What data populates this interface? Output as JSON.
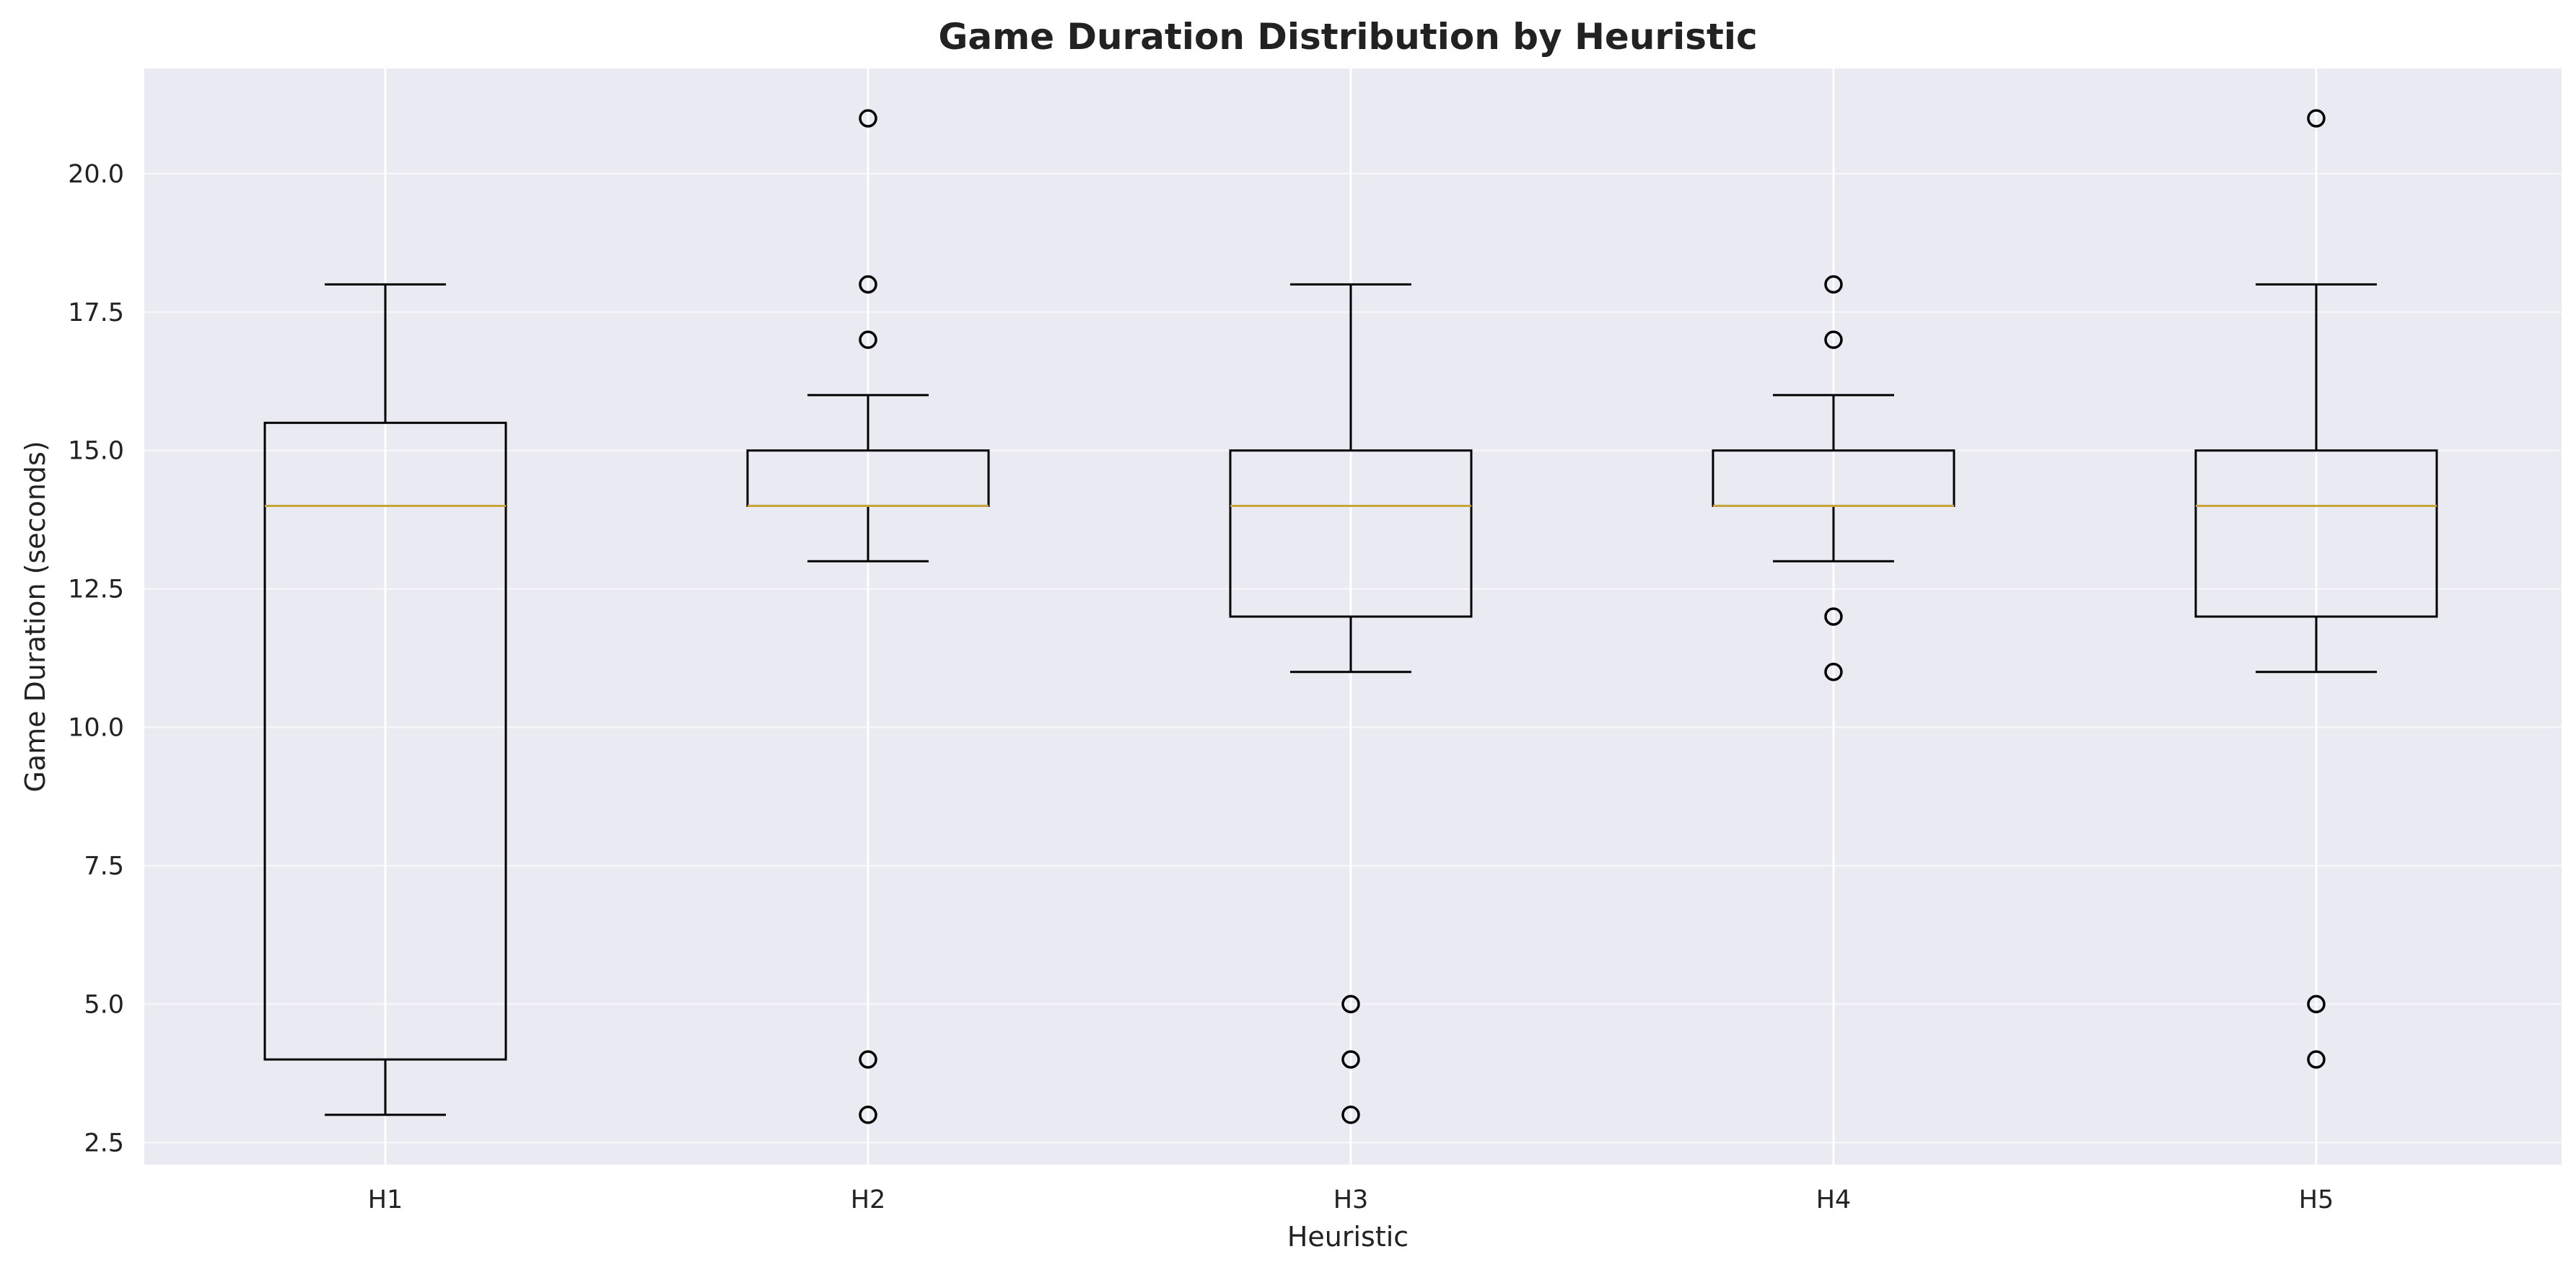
{
  "chart_data": {
    "type": "box",
    "title": "Game Duration Distribution by Heuristic",
    "xlabel": "Heuristic",
    "ylabel": "Game Duration (seconds)",
    "ylim": [
      2.1,
      21.9
    ],
    "yticks": [
      "2.5",
      "5.0",
      "7.5",
      "10.0",
      "12.5",
      "15.0",
      "17.5",
      "20.0"
    ],
    "grid": true,
    "colors": {
      "background": "#eaeaf2",
      "grid": "#ffffff",
      "box": "#000000",
      "median": "#c9a33b"
    },
    "series": [
      {
        "category": "H1",
        "whisker_low": 3,
        "q1": 4,
        "median": 14,
        "q3": 15.5,
        "whisker_high": 18,
        "outliers": []
      },
      {
        "category": "H2",
        "whisker_low": 13,
        "q1": 14,
        "median": 14,
        "q3": 15,
        "whisker_high": 16,
        "outliers": [
          3,
          4,
          17,
          18,
          21
        ]
      },
      {
        "category": "H3",
        "whisker_low": 11,
        "q1": 12,
        "median": 14,
        "q3": 15,
        "whisker_high": 18,
        "outliers": [
          3,
          4,
          5
        ]
      },
      {
        "category": "H4",
        "whisker_low": 13,
        "q1": 14,
        "median": 14,
        "q3": 15,
        "whisker_high": 16,
        "outliers": [
          11,
          12,
          17,
          18
        ]
      },
      {
        "category": "H5",
        "whisker_low": 11,
        "q1": 12,
        "median": 14,
        "q3": 15,
        "whisker_high": 18,
        "outliers": [
          4,
          5,
          21
        ]
      }
    ]
  }
}
